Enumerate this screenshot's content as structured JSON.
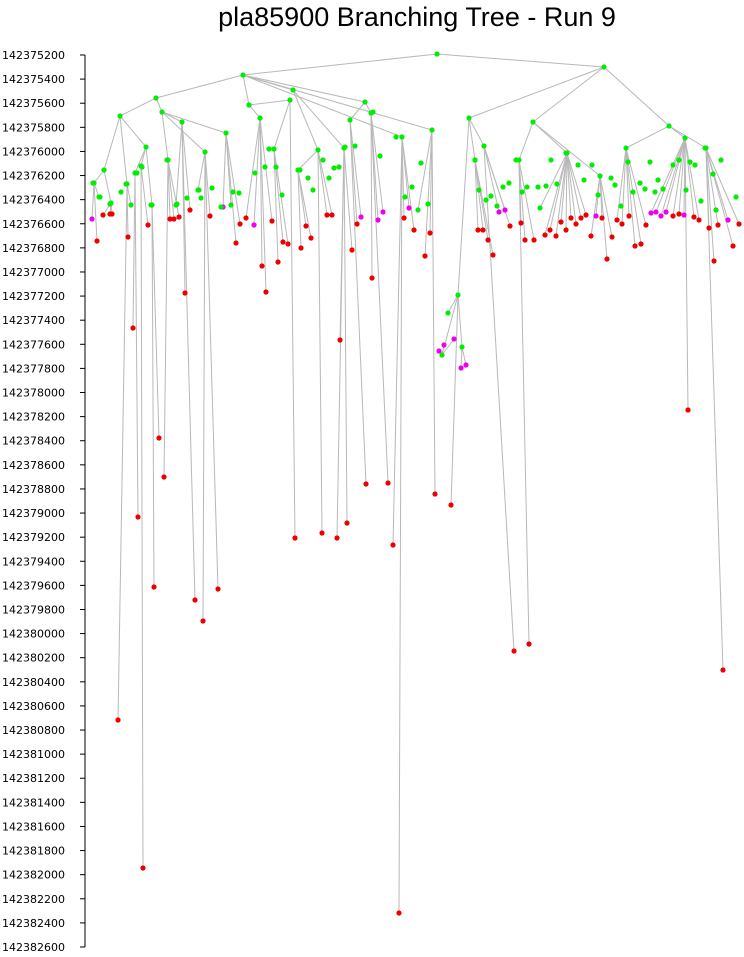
{
  "chart_data": {
    "type": "tree",
    "title": "pla85900 Branching Tree - Run 9",
    "xlabel": "",
    "ylabel": "",
    "ylim": [
      142375200,
      142382600
    ],
    "yticks": [
      142375200,
      142375400,
      142375600,
      142375800,
      142376000,
      142376200,
      142376400,
      142376600,
      142376800,
      142377000,
      142377200,
      142377400,
      142377600,
      142377800,
      142378000,
      142378200,
      142378400,
      142378600,
      142378800,
      142379000,
      142379200,
      142379400,
      142379600,
      142379800,
      142380000,
      142380200,
      142380400,
      142380600,
      142380800,
      142381000,
      142381200,
      142381400,
      142381600,
      142381800,
      142382000,
      142382200,
      142382400,
      142382600
    ],
    "colors": {
      "branched": "#00ee00",
      "pruned": "#ee0000",
      "other": "#ee00ee",
      "edge": "#b8b8b8",
      "axis": "#000000"
    },
    "node_types": [
      "branched",
      "pruned",
      "other"
    ]
  }
}
